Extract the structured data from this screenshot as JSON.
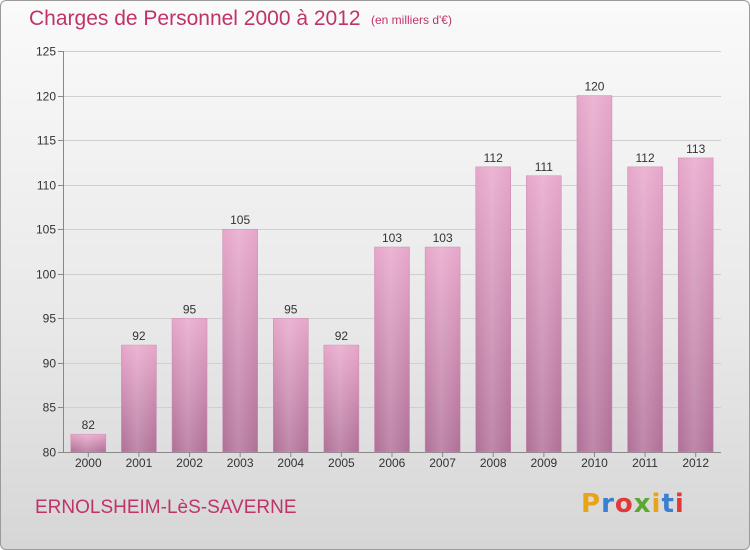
{
  "header": {
    "title": "Charges de Personnel 2000 à 2012",
    "unit": "(en milliers d'€)"
  },
  "footer": {
    "commune": "ERNOLSHEIM-LèS-SAVERNE",
    "logo_text": "Proxiti",
    "logo_colors": [
      "#e8a317",
      "#3a7fd0",
      "#e03a3a",
      "#5aa832",
      "#e8a317",
      "#3a7fd0",
      "#e03a3a"
    ]
  },
  "colors": {
    "accent": "#c0336a",
    "bar_top": "#e7a6ca",
    "bar_bottom": "#b06f97"
  },
  "chart_data": {
    "type": "bar",
    "title": "Charges de Personnel 2000 à 2012",
    "subtitle": "(en milliers d'€)",
    "xlabel": "",
    "ylabel": "",
    "categories": [
      "2000",
      "2001",
      "2002",
      "2003",
      "2004",
      "2005",
      "2006",
      "2007",
      "2008",
      "2009",
      "2010",
      "2011",
      "2012"
    ],
    "values": [
      82,
      92,
      95,
      105,
      95,
      92,
      103,
      103,
      112,
      111,
      120,
      112,
      113
    ],
    "ylim": [
      80,
      125
    ],
    "yticks": [
      80,
      85,
      90,
      95,
      100,
      105,
      110,
      115,
      120,
      125
    ],
    "grid": true,
    "legend": "none"
  }
}
